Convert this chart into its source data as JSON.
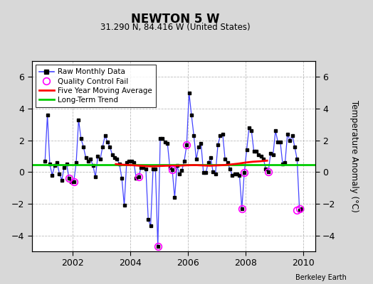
{
  "title": "NEWTON 5 W",
  "subtitle": "31.290 N, 84.416 W (United States)",
  "ylabel": "Temperature Anomaly (°C)",
  "credit": "Berkeley Earth",
  "ylim": [
    -5,
    7
  ],
  "yticks": [
    -4,
    -2,
    0,
    2,
    4,
    6
  ],
  "xlim": [
    2000.58,
    2010.42
  ],
  "xticks": [
    2002,
    2004,
    2006,
    2008,
    2010
  ],
  "long_term_trend": 0.45,
  "background_color": "#d8d8d8",
  "plot_bg_color": "#ffffff",
  "line_color": "#4444ff",
  "raw_times": [
    2001.042,
    2001.125,
    2001.208,
    2001.292,
    2001.375,
    2001.458,
    2001.542,
    2001.625,
    2001.708,
    2001.792,
    2001.875,
    2001.958,
    2002.042,
    2002.125,
    2002.208,
    2002.292,
    2002.375,
    2002.458,
    2002.542,
    2002.625,
    2002.708,
    2002.792,
    2002.875,
    2002.958,
    2003.042,
    2003.125,
    2003.208,
    2003.292,
    2003.375,
    2003.458,
    2003.542,
    2003.625,
    2003.708,
    2003.792,
    2003.875,
    2003.958,
    2004.042,
    2004.125,
    2004.208,
    2004.292,
    2004.375,
    2004.458,
    2004.542,
    2004.625,
    2004.708,
    2004.792,
    2004.875,
    2004.958,
    2005.042,
    2005.125,
    2005.208,
    2005.292,
    2005.375,
    2005.458,
    2005.542,
    2005.625,
    2005.708,
    2005.792,
    2005.875,
    2005.958,
    2006.042,
    2006.125,
    2006.208,
    2006.292,
    2006.375,
    2006.458,
    2006.542,
    2006.625,
    2006.708,
    2006.792,
    2006.875,
    2006.958,
    2007.042,
    2007.125,
    2007.208,
    2007.292,
    2007.375,
    2007.458,
    2007.542,
    2007.625,
    2007.708,
    2007.792,
    2007.875,
    2007.958,
    2008.042,
    2008.125,
    2008.208,
    2008.292,
    2008.375,
    2008.458,
    2008.542,
    2008.625,
    2008.708,
    2008.792,
    2008.875,
    2008.958,
    2009.042,
    2009.125,
    2009.208,
    2009.292,
    2009.375,
    2009.458,
    2009.542,
    2009.625,
    2009.708,
    2009.792,
    2009.875,
    2009.958
  ],
  "raw_values": [
    0.7,
    3.6,
    0.5,
    -0.2,
    0.4,
    0.6,
    -0.1,
    -0.5,
    0.3,
    0.5,
    -0.4,
    -0.6,
    -0.6,
    0.6,
    3.3,
    2.1,
    1.6,
    0.9,
    0.7,
    0.8,
    0.4,
    -0.3,
    1.0,
    0.8,
    1.6,
    2.3,
    1.9,
    1.6,
    1.1,
    0.9,
    0.8,
    0.5,
    -0.4,
    -2.1,
    0.6,
    0.7,
    0.7,
    0.6,
    -0.4,
    -0.3,
    0.3,
    0.3,
    0.2,
    -3.0,
    -3.4,
    0.2,
    0.2,
    -4.7,
    2.1,
    2.1,
    1.9,
    1.8,
    0.3,
    0.15,
    -1.6,
    0.4,
    -0.1,
    0.1,
    0.7,
    1.7,
    5.0,
    3.6,
    2.3,
    0.8,
    1.6,
    1.8,
    -0.05,
    -0.05,
    0.6,
    0.9,
    -0.0,
    -0.1,
    1.7,
    2.3,
    2.4,
    0.8,
    0.6,
    0.2,
    -0.2,
    -0.1,
    -0.1,
    -0.2,
    -2.3,
    -0.05,
    1.4,
    2.8,
    2.6,
    1.3,
    1.3,
    1.1,
    1.0,
    0.8,
    0.2,
    0.0,
    1.2,
    1.1,
    2.6,
    1.9,
    1.9,
    0.5,
    0.6,
    2.4,
    2.0,
    2.3,
    1.6,
    0.8,
    -2.4,
    -2.3
  ],
  "qc_fail_times": [
    2001.875,
    2002.042,
    2004.292,
    2004.958,
    2005.458,
    2005.958,
    2007.875,
    2007.958,
    2008.792,
    2009.792,
    2009.875
  ],
  "qc_fail_values": [
    -0.4,
    -0.6,
    -0.3,
    -4.7,
    0.15,
    1.7,
    -2.3,
    -0.05,
    0.0,
    -2.4,
    -2.3
  ],
  "ma_times": [
    2003.5,
    2003.75,
    2004.0,
    2004.25,
    2004.5,
    2004.75,
    2005.0,
    2005.25,
    2005.5,
    2005.75,
    2006.0,
    2006.25,
    2006.5,
    2006.75,
    2007.0,
    2007.25,
    2007.5,
    2007.75,
    2008.0,
    2008.25,
    2008.5,
    2008.75
  ],
  "ma_values": [
    0.5,
    0.46,
    0.44,
    0.41,
    0.38,
    0.36,
    0.38,
    0.4,
    0.4,
    0.41,
    0.43,
    0.44,
    0.42,
    0.4,
    0.42,
    0.44,
    0.48,
    0.53,
    0.6,
    0.65,
    0.68,
    0.72
  ]
}
